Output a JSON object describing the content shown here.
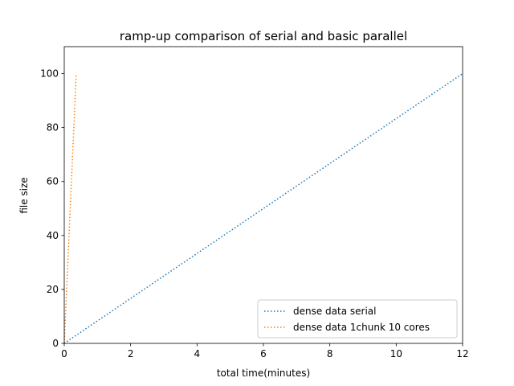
{
  "chart_data": {
    "type": "line",
    "title": "ramp-up comparison of serial and basic parallel",
    "xlabel": "total time(minutes)",
    "ylabel": "file size",
    "xlim": [
      0,
      12
    ],
    "ylim": [
      0,
      110
    ],
    "xticks": [
      0,
      2,
      4,
      6,
      8,
      10,
      12
    ],
    "yticks": [
      0,
      20,
      40,
      60,
      80,
      100
    ],
    "grid": false,
    "legend_position": "lower-right",
    "series": [
      {
        "name": "dense data serial",
        "color": "#1f77b4",
        "linestyle": "dotted",
        "x": [
          0,
          12
        ],
        "y": [
          0,
          100
        ]
      },
      {
        "name": "dense data 1chunk 10 cores",
        "color": "#ff7f0e",
        "linestyle": "dotted",
        "x": [
          0,
          0.36
        ],
        "y": [
          0,
          100
        ]
      }
    ]
  }
}
